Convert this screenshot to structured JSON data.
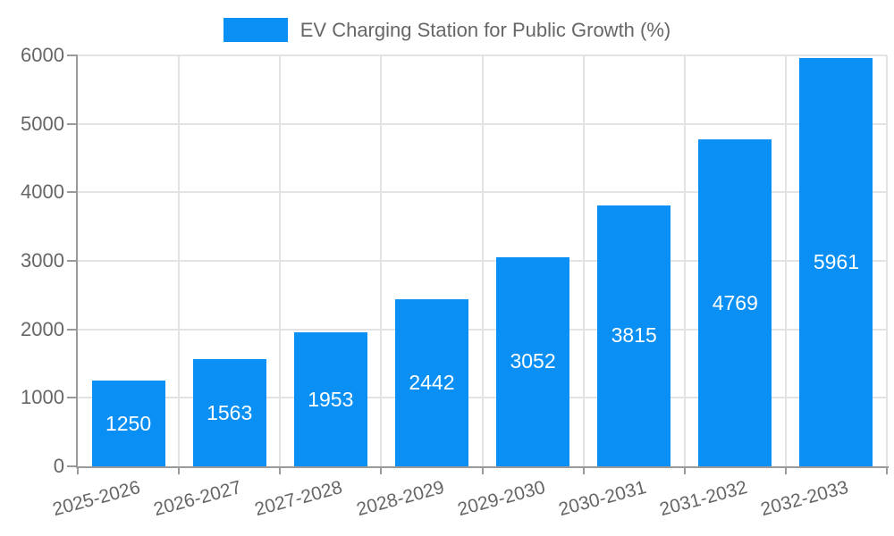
{
  "legend": {
    "label": "EV Charging Station for Public Growth (%)"
  },
  "chart_data": {
    "type": "bar",
    "title": "EV Charging Station for Public Growth (%)",
    "categories": [
      "2025-2026",
      "2026-2027",
      "2027-2028",
      "2028-2029",
      "2029-2030",
      "2030-2031",
      "2031-2032",
      "2032-2033"
    ],
    "values": [
      1250,
      1563,
      1953,
      2442,
      3052,
      3815,
      4769,
      5961
    ],
    "value_labels": [
      "1250",
      "1563",
      "1953",
      "2442",
      "3052",
      "3815",
      "4769",
      "5961"
    ],
    "xlabel": "",
    "ylabel": "",
    "ylim": [
      0,
      6000
    ],
    "yticks": [
      0,
      1000,
      2000,
      3000,
      4000,
      5000,
      6000
    ],
    "grid": true,
    "legend_position": "top-center",
    "x_label_rotation_deg": -15,
    "colors": {
      "bar": "#0a90f5",
      "grid": "#e3e3e3",
      "axis": "#9a9a9a",
      "tick_text": "#666666",
      "value_text": "#ffffff"
    }
  }
}
